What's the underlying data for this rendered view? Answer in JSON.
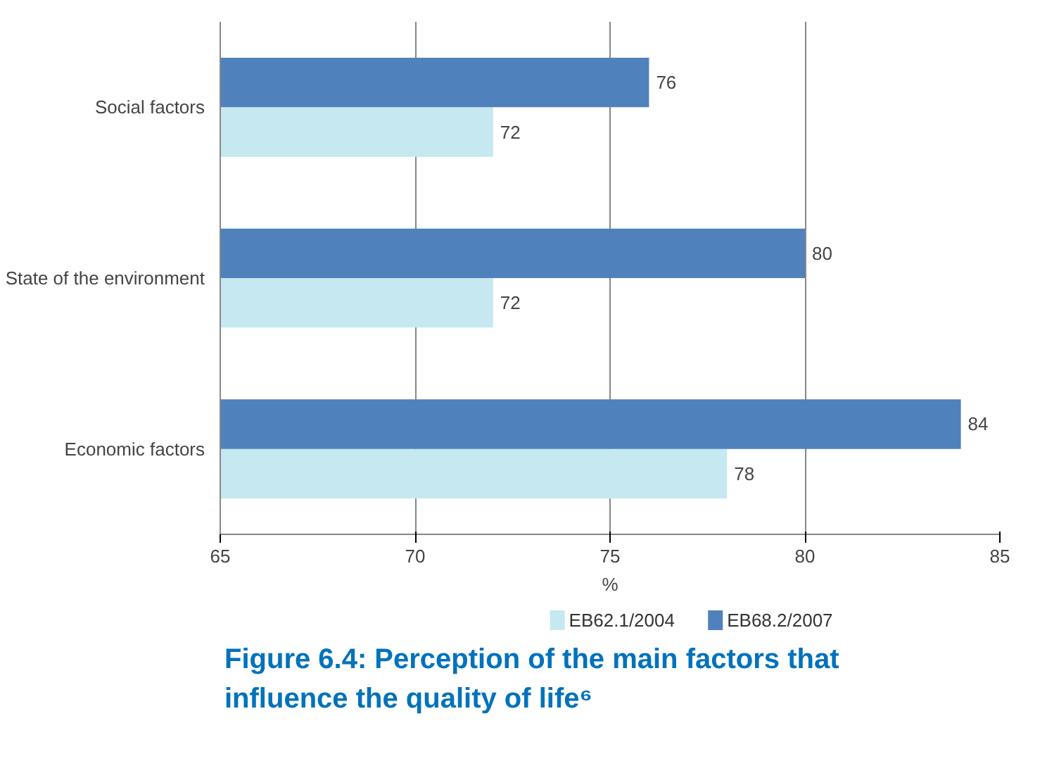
{
  "chart_data": {
    "type": "bar",
    "orientation": "horizontal",
    "title": "Figure 6.4: Perception of the main factors that influence the quality of life⁶",
    "xlabel": "%",
    "categories": [
      "Social factors",
      "State of the environment",
      "Economic factors"
    ],
    "series": [
      {
        "name": "EB62.1/2004",
        "color": "#c5e8f1",
        "values": [
          72,
          72,
          78
        ]
      },
      {
        "name": "EB68.2/2007",
        "color": "#4f81bd",
        "values": [
          76,
          80,
          84
        ]
      }
    ],
    "xlim": [
      65,
      85
    ],
    "xticks": [
      65,
      70,
      75,
      80,
      85
    ],
    "grid": "x",
    "legend": "bottom",
    "data_labels": true
  }
}
